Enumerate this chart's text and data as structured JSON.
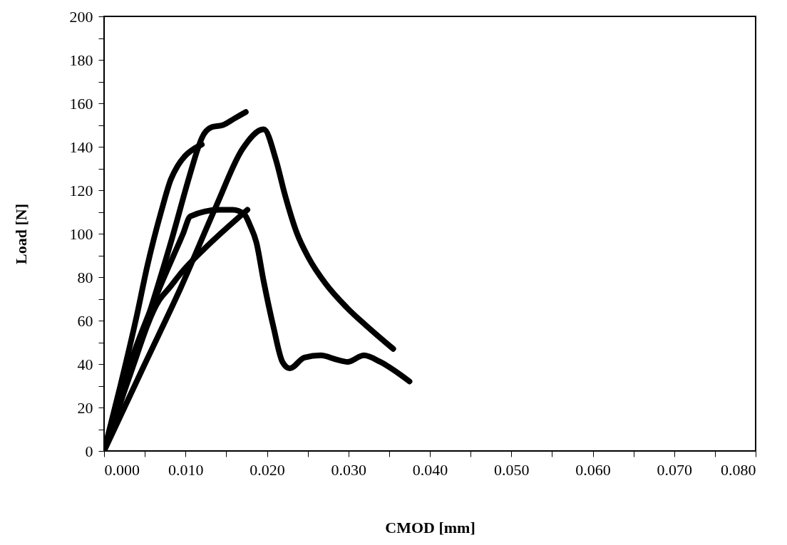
{
  "chart_data": {
    "type": "line",
    "xlabel": "CMOD [mm]",
    "ylabel": "Load [N]",
    "xlim": [
      0,
      0.08
    ],
    "ylim": [
      0,
      200
    ],
    "xticks": [
      {
        "value": 0,
        "label": "0.000"
      },
      {
        "value": 0.005,
        "label": null
      },
      {
        "value": 0.01,
        "label": "0.010"
      },
      {
        "value": 0.015,
        "label": null
      },
      {
        "value": 0.02,
        "label": "0.020"
      },
      {
        "value": 0.025,
        "label": null
      },
      {
        "value": 0.03,
        "label": "0.030"
      },
      {
        "value": 0.035,
        "label": null
      },
      {
        "value": 0.04,
        "label": "0.040"
      },
      {
        "value": 0.045,
        "label": null
      },
      {
        "value": 0.05,
        "label": "0.050"
      },
      {
        "value": 0.055,
        "label": null
      },
      {
        "value": 0.06,
        "label": "0.060"
      },
      {
        "value": 0.065,
        "label": null
      },
      {
        "value": 0.07,
        "label": "0.070"
      },
      {
        "value": 0.075,
        "label": null
      },
      {
        "value": 0.08,
        "label": "0.080"
      }
    ],
    "yticks": [
      0,
      {
        "value": 10,
        "label": null
      },
      20,
      {
        "value": 30,
        "label": null
      },
      40,
      {
        "value": 50,
        "label": null
      },
      60,
      {
        "value": 70,
        "label": null
      },
      80,
      {
        "value": 90,
        "label": null
      },
      100,
      {
        "value": 110,
        "label": null
      },
      120,
      {
        "value": 130,
        "label": null
      },
      140,
      {
        "value": 150,
        "label": null
      },
      160,
      {
        "value": 170,
        "label": null
      },
      180,
      {
        "value": 190,
        "label": null
      },
      200
    ],
    "grid": false,
    "marker": "none",
    "line_style": "solid",
    "series": [
      {
        "color": "#000000",
        "x": [
          0,
          0.002,
          0.004,
          0.0053,
          0.007,
          0.0082,
          0.009,
          0.01,
          0.011,
          0.012
        ],
        "values": [
          0,
          30,
          62,
          85,
          110,
          125,
          131,
          136,
          139,
          141
        ]
      },
      {
        "color": "#000000",
        "x": [
          0,
          0.004,
          0.0082,
          0.0106,
          0.0115,
          0.012,
          0.0132,
          0.0146,
          0.016,
          0.0174
        ],
        "values": [
          0,
          45,
          96,
          128,
          139,
          144,
          149,
          150,
          153,
          156
        ]
      },
      {
        "color": "#000000",
        "x": [
          0,
          0.005,
          0.0094,
          0.0138,
          0.017,
          0.0196,
          0.0211,
          0.0222,
          0.0237,
          0.0251,
          0.0272,
          0.0298,
          0.0327,
          0.0355
        ],
        "values": [
          0,
          40,
          75,
          113,
          139,
          148,
          134,
          118,
          100,
          89,
          77,
          66,
          56,
          47
        ]
      },
      {
        "color": "#000000",
        "x": [
          0,
          0.003,
          0.0067,
          0.0097,
          0.0106,
          0.0141,
          0.0158,
          0.0172,
          0.0179,
          0.0187,
          0.0196,
          0.0208,
          0.0219,
          0.0228,
          0.0246,
          0.0266,
          0.0286,
          0.0299,
          0.0319,
          0.0339,
          0.0375
        ],
        "values": [
          0,
          38,
          74,
          100,
          108,
          111,
          111,
          109,
          104,
          96,
          78,
          57,
          41,
          38,
          43,
          44,
          42,
          41,
          44,
          41,
          32
        ]
      },
      {
        "color": "#000000",
        "x": [
          0,
          0.003,
          0.0067,
          0.008,
          0.0097,
          0.0123,
          0.0176
        ],
        "values": [
          0,
          33,
          69,
          75,
          83,
          93,
          111
        ]
      }
    ]
  }
}
